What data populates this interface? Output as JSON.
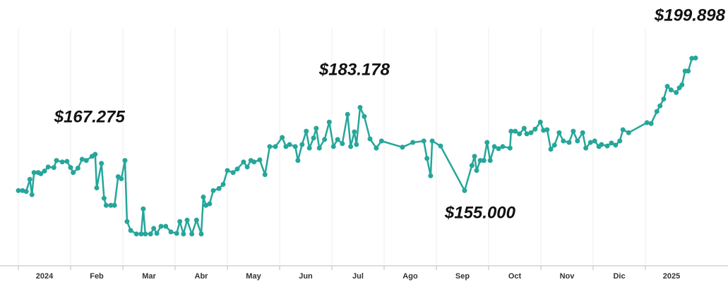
{
  "chart_data": {
    "type": "line",
    "color": "#26a69a",
    "grid": true,
    "xlim": [
      0,
      13
    ],
    "ylim": [
      130000,
      210000
    ],
    "xticks": [
      {
        "value": 0,
        "label": "2024"
      },
      {
        "value": 1,
        "label": "Feb"
      },
      {
        "value": 2,
        "label": "Mar"
      },
      {
        "value": 3,
        "label": "Abr"
      },
      {
        "value": 4,
        "label": "May"
      },
      {
        "value": 5,
        "label": "Jun"
      },
      {
        "value": 6,
        "label": "Jul"
      },
      {
        "value": 7,
        "label": "Ago"
      },
      {
        "value": 8,
        "label": "Sep"
      },
      {
        "value": 9,
        "label": "Oct"
      },
      {
        "value": 10,
        "label": "Nov"
      },
      {
        "value": 11,
        "label": "Dic"
      },
      {
        "value": 12,
        "label": "2025"
      }
    ],
    "x": [
      0,
      0.08,
      0.15,
      0.22,
      0.26,
      0.3,
      0.38,
      0.43,
      0.5,
      0.57,
      0.68,
      0.73,
      0.84,
      0.93,
      1.0,
      1.05,
      1.14,
      1.22,
      1.3,
      1.41,
      1.47,
      1.5,
      1.59,
      1.64,
      1.68,
      1.77,
      1.84,
      1.91,
      1.97,
      2.04,
      2.08,
      2.15,
      2.26,
      2.35,
      2.39,
      2.43,
      2.53,
      2.59,
      2.65,
      2.73,
      2.82,
      2.92,
      3.03,
      3.09,
      3.16,
      3.23,
      3.32,
      3.41,
      3.5,
      3.54,
      3.59,
      3.66,
      3.73,
      3.84,
      3.92,
      4.0,
      4.11,
      4.19,
      4.31,
      4.38,
      4.45,
      4.51,
      4.62,
      4.72,
      4.81,
      4.92,
      5.05,
      5.12,
      5.19,
      5.3,
      5.35,
      5.43,
      5.51,
      5.57,
      5.65,
      5.7,
      5.76,
      5.86,
      5.95,
      6.03,
      6.11,
      6.2,
      6.3,
      6.36,
      6.43,
      6.47,
      6.54,
      6.62,
      6.73,
      6.85,
      6.95,
      7.35,
      7.55,
      7.76,
      7.82,
      7.89,
      7.92,
      8.08,
      8.54,
      8.68,
      8.73,
      8.77,
      8.84,
      8.91,
      8.97,
      9.03,
      9.11,
      9.19,
      9.27,
      9.41,
      9.43,
      9.51,
      9.59,
      9.68,
      9.73,
      9.81,
      9.89,
      9.99,
      10.05,
      10.12,
      10.19,
      10.26,
      10.35,
      10.43,
      10.54,
      10.62,
      10.7,
      10.8,
      10.86,
      10.95,
      11.03,
      11.11,
      11.16,
      11.27,
      11.35,
      11.43,
      11.51,
      11.57,
      11.68,
      12.03,
      12.11,
      12.22,
      12.28,
      12.35,
      12.42,
      12.49,
      12.59,
      12.65,
      12.7,
      12.76,
      12.82,
      12.89,
      12.96
    ],
    "values": [
      155000,
      155000,
      154700,
      158800,
      153600,
      161100,
      161100,
      160700,
      161600,
      163000,
      162800,
      165200,
      164700,
      164900,
      162800,
      161100,
      162600,
      165600,
      165200,
      166600,
      167275,
      155900,
      164200,
      152400,
      150000,
      150000,
      150000,
      159700,
      159000,
      165200,
      144500,
      141500,
      140300,
      140300,
      148800,
      140300,
      140300,
      142200,
      140500,
      142900,
      142900,
      141000,
      140500,
      144500,
      140300,
      145000,
      140300,
      145000,
      140300,
      152800,
      150000,
      150500,
      155000,
      155700,
      157100,
      161800,
      161100,
      162300,
      164700,
      163000,
      165200,
      164700,
      165400,
      160400,
      169900,
      169900,
      173000,
      169900,
      170600,
      169900,
      165200,
      170600,
      175100,
      169400,
      172800,
      176100,
      169400,
      172300,
      178200,
      169900,
      172300,
      170900,
      180800,
      169900,
      174900,
      170600,
      183178,
      180100,
      172500,
      169400,
      171800,
      169700,
      171300,
      171800,
      165900,
      160000,
      171800,
      170100,
      155000,
      163500,
      166600,
      161800,
      165200,
      165200,
      171300,
      165200,
      169900,
      169200,
      169900,
      169400,
      175100,
      175100,
      174200,
      176100,
      174200,
      174600,
      175800,
      178200,
      175400,
      175600,
      169000,
      170400,
      174600,
      171800,
      171300,
      175100,
      171800,
      174600,
      169400,
      171300,
      171800,
      169900,
      170600,
      170100,
      171100,
      170400,
      171800,
      175600,
      174600,
      178000,
      177700,
      181800,
      183700,
      186000,
      190300,
      189100,
      188200,
      189800,
      190800,
      195500,
      195500,
      199800,
      199898
    ],
    "value_labels": [
      null,
      null,
      null,
      null,
      null,
      null,
      null,
      null,
      null,
      null,
      null,
      null,
      null,
      null,
      null,
      null,
      null,
      null,
      null,
      null,
      "$167.275",
      null,
      null,
      null,
      null,
      null,
      null,
      null,
      null,
      null,
      null,
      null,
      null,
      null,
      null,
      null,
      null,
      null,
      null,
      null,
      null,
      null,
      null,
      null,
      null,
      null,
      null,
      null,
      null,
      null,
      null,
      null,
      null,
      null,
      null,
      null,
      null,
      null,
      null,
      null,
      null,
      null,
      null,
      null,
      null,
      null,
      null,
      null,
      null,
      null,
      null,
      null,
      null,
      null,
      null,
      null,
      null,
      null,
      null,
      null,
      null,
      null,
      null,
      null,
      null,
      null,
      "$183.178",
      null,
      null,
      null,
      null,
      null,
      null,
      null,
      null,
      null,
      null,
      null,
      "$155.000",
      null,
      null,
      null,
      null,
      null,
      null,
      null,
      null,
      null,
      null,
      null,
      null,
      null,
      null,
      null,
      null,
      null,
      null,
      null,
      null,
      null,
      null,
      null,
      null,
      null,
      null,
      null,
      null,
      null,
      null,
      null,
      null,
      null,
      null,
      null,
      null,
      null,
      null,
      null,
      null,
      null,
      null,
      null,
      null,
      null,
      null,
      null,
      null,
      null,
      null,
      null,
      null,
      null,
      "$199.898"
    ]
  }
}
